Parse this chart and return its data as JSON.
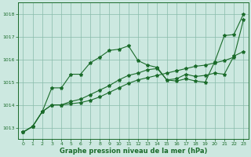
{
  "xlabel": "Graphe pression niveau de la mer (hPa)",
  "xlim": [
    -0.5,
    23.5
  ],
  "ylim": [
    1012.5,
    1018.5
  ],
  "yticks": [
    1013,
    1014,
    1015,
    1016,
    1017,
    1018
  ],
  "xticks": [
    0,
    1,
    2,
    3,
    4,
    5,
    6,
    7,
    8,
    9,
    10,
    11,
    12,
    13,
    14,
    15,
    16,
    17,
    18,
    19,
    20,
    21,
    22,
    23
  ],
  "background_color": "#cce8e0",
  "grid_color": "#88bbaa",
  "line_color": "#1a6b2a",
  "series": [
    [
      1012.8,
      1013.05,
      1013.7,
      1014.75,
      1014.75,
      1015.35,
      1015.35,
      1015.85,
      1016.1,
      1016.4,
      1016.45,
      1016.6,
      1015.95,
      1015.75,
      1015.65,
      1015.1,
      1015.05,
      1015.15,
      1015.05,
      1015.0,
      1015.9,
      1017.05,
      1017.1,
      1018.0
    ],
    [
      1012.8,
      1013.05,
      1013.7,
      1014.0,
      1014.0,
      1014.15,
      1014.25,
      1014.45,
      1014.65,
      1014.85,
      1015.1,
      1015.3,
      1015.4,
      1015.55,
      1015.6,
      1015.1,
      1015.15,
      1015.35,
      1015.25,
      1015.3,
      1015.4,
      1015.35,
      1016.15,
      1016.35
    ],
    [
      1012.8,
      1013.05,
      1013.7,
      1014.0,
      1014.0,
      1014.05,
      1014.1,
      1014.2,
      1014.35,
      1014.55,
      1014.75,
      1014.95,
      1015.1,
      1015.2,
      1015.3,
      1015.4,
      1015.5,
      1015.6,
      1015.7,
      1015.75,
      1015.85,
      1015.95,
      1016.1,
      1017.75
    ]
  ]
}
